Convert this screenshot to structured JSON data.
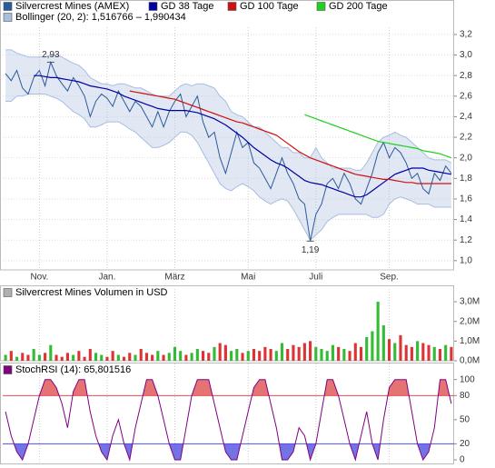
{
  "chart_data": [
    {
      "type": "line",
      "series": [
        {
          "name": "Silvercrest Mines (AMEX)",
          "color": "#2a5a9a",
          "values": [
            2.82,
            2.75,
            2.85,
            2.68,
            2.62,
            2.78,
            2.85,
            2.7,
            2.93,
            2.8,
            2.72,
            2.65,
            2.78,
            2.7,
            2.6,
            2.4,
            2.55,
            2.62,
            2.58,
            2.5,
            2.65,
            2.55,
            2.45,
            2.55,
            2.5,
            2.4,
            2.3,
            2.45,
            2.3,
            2.45,
            2.55,
            2.62,
            2.4,
            2.5,
            2.6,
            2.35,
            2.2,
            2.25,
            2.0,
            1.85,
            2.05,
            2.25,
            2.1,
            2.15,
            1.95,
            1.9,
            1.8,
            1.7,
            1.85,
            2.0,
            1.85,
            1.75,
            1.6,
            1.55,
            1.19,
            1.45,
            1.55,
            1.75,
            1.8,
            1.7,
            1.85,
            1.75,
            1.6,
            1.55,
            1.7,
            1.85,
            2.05,
            2.15,
            2.0,
            2.1,
            2.05,
            1.95,
            1.8,
            1.85,
            1.7,
            1.65,
            1.85,
            1.78,
            1.92,
            1.85
          ]
        },
        {
          "name": "GD 38 Tage",
          "color": "#0000a0",
          "values": [
            null,
            null,
            null,
            null,
            null,
            2.8,
            2.8,
            2.79,
            2.78,
            2.78,
            2.77,
            2.76,
            2.75,
            2.74,
            2.72,
            2.7,
            2.69,
            2.68,
            2.67,
            2.65,
            2.63,
            2.6,
            2.58,
            2.56,
            2.54,
            2.52,
            2.5,
            2.48,
            2.47,
            2.46,
            2.46,
            2.46,
            2.46,
            2.45,
            2.44,
            2.42,
            2.4,
            2.38,
            2.35,
            2.32,
            2.28,
            2.24,
            2.2,
            2.15,
            2.1,
            2.06,
            2.02,
            1.98,
            1.95,
            1.93,
            1.9,
            1.86,
            1.82,
            1.78,
            1.76,
            1.75,
            1.74,
            1.72,
            1.7,
            1.68,
            1.66,
            1.64,
            1.62,
            1.62,
            1.64,
            1.68,
            1.72,
            1.76,
            1.8,
            1.84,
            1.86,
            1.88,
            1.9,
            1.9,
            1.9,
            1.88,
            1.87,
            1.86,
            1.85,
            1.84
          ]
        },
        {
          "name": "GD 100 Tage",
          "color": "#d01010",
          "values": [
            null,
            null,
            null,
            null,
            null,
            null,
            null,
            null,
            null,
            null,
            null,
            null,
            null,
            null,
            null,
            null,
            null,
            null,
            null,
            null,
            null,
            null,
            2.65,
            2.64,
            2.63,
            2.62,
            2.61,
            2.6,
            2.59,
            2.58,
            2.57,
            2.55,
            2.53,
            2.51,
            2.49,
            2.47,
            2.45,
            2.43,
            2.41,
            2.39,
            2.37,
            2.35,
            2.34,
            2.32,
            2.3,
            2.28,
            2.26,
            2.24,
            2.22,
            2.18,
            2.14,
            2.1,
            2.06,
            2.03,
            2.0,
            1.98,
            1.96,
            1.94,
            1.92,
            1.9,
            1.88,
            1.86,
            1.84,
            1.83,
            1.82,
            1.81,
            1.8,
            1.79,
            1.79,
            1.78,
            1.77,
            1.76,
            1.76,
            1.75,
            1.75,
            1.75,
            1.75,
            1.75,
            1.75,
            1.75
          ]
        },
        {
          "name": "GD 200 Tage",
          "color": "#20d020",
          "values": [
            null,
            null,
            null,
            null,
            null,
            null,
            null,
            null,
            null,
            null,
            null,
            null,
            null,
            null,
            null,
            null,
            null,
            null,
            null,
            null,
            null,
            null,
            null,
            null,
            null,
            null,
            null,
            null,
            null,
            null,
            null,
            null,
            null,
            null,
            null,
            null,
            null,
            null,
            null,
            null,
            null,
            null,
            null,
            null,
            null,
            null,
            null,
            null,
            null,
            null,
            null,
            null,
            null,
            2.42,
            2.4,
            2.38,
            2.36,
            2.34,
            2.32,
            2.3,
            2.28,
            2.26,
            2.24,
            2.22,
            2.2,
            2.18,
            2.16,
            2.15,
            2.14,
            2.13,
            2.12,
            2.11,
            2.1,
            2.09,
            2.07,
            2.06,
            2.05,
            2.04,
            2.02,
            2.0
          ]
        }
      ],
      "band": {
        "name": "Bollinger (20, 2): 1,516766 – 1,990434",
        "color": "#a8bde0",
        "upper": [
          3.05,
          3.05,
          3.02,
          3.0,
          2.98,
          2.98,
          2.98,
          2.98,
          3.0,
          3.0,
          2.98,
          2.95,
          2.92,
          2.9,
          2.85,
          2.78,
          2.75,
          2.72,
          2.72,
          2.7,
          2.72,
          2.72,
          2.7,
          2.68,
          2.68,
          2.65,
          2.62,
          2.6,
          2.6,
          2.6,
          2.65,
          2.7,
          2.72,
          2.7,
          2.72,
          2.72,
          2.7,
          2.68,
          2.6,
          2.55,
          2.45,
          2.42,
          2.4,
          2.35,
          2.3,
          2.3,
          2.25,
          2.2,
          2.15,
          2.1,
          2.1,
          2.05,
          2.05,
          2.0,
          2.0,
          2.1,
          2.0,
          1.95,
          1.9,
          1.9,
          1.9,
          1.9,
          1.88,
          1.88,
          1.95,
          2.05,
          2.15,
          2.2,
          2.22,
          2.25,
          2.22,
          2.2,
          2.15,
          2.1,
          2.05,
          2.0,
          1.98,
          1.98,
          1.98,
          1.95
        ],
        "lower": [
          2.55,
          2.55,
          2.6,
          2.6,
          2.62,
          2.62,
          2.62,
          2.62,
          2.6,
          2.58,
          2.55,
          2.5,
          2.45,
          2.42,
          2.38,
          2.3,
          2.3,
          2.32,
          2.35,
          2.35,
          2.35,
          2.32,
          2.28,
          2.25,
          2.2,
          2.15,
          2.1,
          2.1,
          2.12,
          2.15,
          2.2,
          2.25,
          2.25,
          2.22,
          2.15,
          2.05,
          1.95,
          1.85,
          1.75,
          1.7,
          1.68,
          1.72,
          1.75,
          1.72,
          1.68,
          1.62,
          1.58,
          1.55,
          1.58,
          1.6,
          1.58,
          1.5,
          1.4,
          1.3,
          1.2,
          1.25,
          1.3,
          1.38,
          1.42,
          1.45,
          1.45,
          1.45,
          1.45,
          1.45,
          1.45,
          1.42,
          1.42,
          1.45,
          1.55,
          1.6,
          1.62,
          1.6,
          1.58,
          1.55,
          1.55,
          1.55,
          1.52,
          1.52,
          1.52,
          1.52
        ]
      },
      "annotations": [
        {
          "text": "2,93",
          "value": 2.93
        },
        {
          "text": "1,19",
          "value": 1.19
        }
      ],
      "xticks": [
        {
          "value": 6,
          "label": "Nov."
        },
        {
          "value": 18,
          "label": "Jan."
        },
        {
          "value": 30,
          "label": "März"
        },
        {
          "value": 43,
          "label": "Mai"
        },
        {
          "value": 55,
          "label": "Juli"
        },
        {
          "value": 68,
          "label": "Sep."
        }
      ],
      "ylim": [
        0.91,
        3.27
      ],
      "yticks": [
        {
          "value": 1.0,
          "label": "1,0"
        },
        {
          "value": 1.2,
          "label": "1,2"
        },
        {
          "value": 1.4,
          "label": "1,4"
        },
        {
          "value": 1.6,
          "label": "1,6"
        },
        {
          "value": 1.8,
          "label": "1,8"
        },
        {
          "value": 2.0,
          "label": "2,0"
        },
        {
          "value": 2.2,
          "label": "2,2"
        },
        {
          "value": 2.4,
          "label": "2,4"
        },
        {
          "value": 2.6,
          "label": "2,6"
        },
        {
          "value": 2.8,
          "label": "2,8"
        },
        {
          "value": 3.0,
          "label": "3,0"
        },
        {
          "value": 3.2,
          "label": "3,2"
        }
      ],
      "grid": true
    },
    {
      "type": "bar",
      "title": "Silvercrest Mines Volumen in USD",
      "color": "#b0b0b0",
      "up_color": "#33bb33",
      "down_color": "#dd3333",
      "values": [
        0.3,
        0.5,
        0.2,
        0.4,
        0.3,
        0.6,
        0.3,
        0.4,
        0.8,
        0.3,
        0.2,
        0.4,
        0.3,
        0.5,
        0.2,
        0.6,
        0.4,
        0.3,
        0.2,
        0.5,
        0.3,
        0.2,
        0.4,
        0.3,
        0.6,
        0.4,
        0.3,
        0.5,
        0.3,
        0.4,
        0.7,
        0.5,
        0.3,
        0.4,
        0.6,
        0.5,
        0.4,
        0.7,
        0.9,
        0.8,
        0.5,
        0.6,
        0.4,
        0.5,
        0.6,
        0.5,
        0.7,
        0.6,
        0.5,
        0.9,
        0.6,
        0.8,
        0.7,
        0.9,
        1.0,
        0.7,
        0.6,
        0.5,
        0.8,
        0.7,
        0.6,
        0.5,
        0.9,
        0.7,
        1.2,
        1.5,
        3.0,
        1.8,
        1.1,
        0.9,
        1.3,
        0.8,
        0.7,
        1.0,
        0.9,
        0.8,
        0.7,
        0.6,
        0.8,
        0.7
      ],
      "ylim": [
        0,
        3.65
      ],
      "yticks": [
        {
          "value": 0,
          "label": "0,0M"
        },
        {
          "value": 1,
          "label": "1,0M"
        },
        {
          "value": 2,
          "label": "2,0M"
        },
        {
          "value": 3,
          "label": "3,0M"
        }
      ]
    },
    {
      "type": "oscillator",
      "title": "StochRSI (14): 65,801516",
      "color": "#800080",
      "values": [
        60,
        30,
        10,
        0,
        20,
        50,
        80,
        100,
        100,
        90,
        70,
        40,
        85,
        100,
        100,
        60,
        30,
        10,
        0,
        30,
        50,
        20,
        0,
        40,
        70,
        100,
        100,
        80,
        50,
        20,
        0,
        0,
        40,
        80,
        100,
        100,
        100,
        70,
        40,
        10,
        0,
        0,
        30,
        60,
        90,
        100,
        100,
        70,
        40,
        0,
        0,
        10,
        40,
        30,
        0,
        20,
        60,
        100,
        100,
        80,
        50,
        20,
        0,
        30,
        60,
        20,
        0,
        50,
        90,
        100,
        100,
        100,
        60,
        20,
        0,
        10,
        40,
        100,
        100,
        70
      ],
      "levels": [
        {
          "value": 80,
          "color": "#e05050"
        },
        {
          "value": 20,
          "color": "#5050e0"
        }
      ],
      "ylim": [
        -4.5,
        120
      ],
      "yticks": [
        0,
        20,
        50,
        80,
        100
      ]
    }
  ]
}
